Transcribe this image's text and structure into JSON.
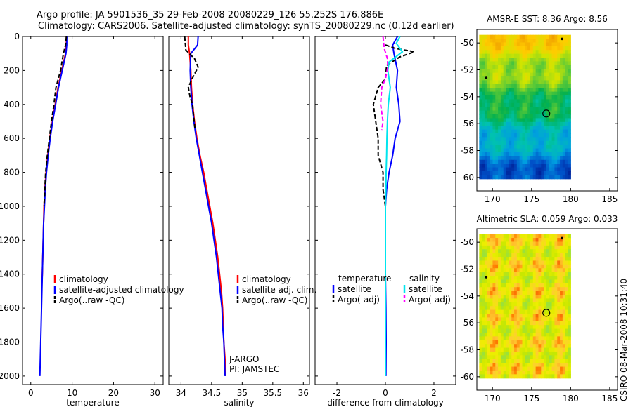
{
  "header": {
    "line1": "Argo profile: JA 5901536_35 29-Feb-2008 20080229_126 55.252S 176.886E",
    "line2": "Climatology: CARS2006. Satellite-adjusted climatology: synTS_20080229.nc (0.12d earlier)"
  },
  "footer_stamp": "CSIRO 08-Mar-2008 10:31:40",
  "colors": {
    "climatology": "#ff0000",
    "satellite": "#0000ff",
    "argo": "#000000",
    "sal_satellite": "#00e5ee",
    "sal_argo": "#ff00ff",
    "axis": "#000000"
  },
  "chart_data": [
    {
      "type": "line",
      "name": "temperature-profile",
      "xlabel": "temperature",
      "ylabel": "",
      "xlim": [
        -2,
        32
      ],
      "ylim": [
        2050,
        0
      ],
      "xticks": [
        0,
        10,
        20,
        30
      ],
      "yticks": [
        0,
        200,
        400,
        600,
        800,
        1000,
        1200,
        1400,
        1600,
        1800,
        2000
      ],
      "series": [
        {
          "name": "climatology",
          "color": "#ff0000",
          "style": "solid",
          "points": [
            [
              8.6,
              0
            ],
            [
              8.6,
              50
            ],
            [
              8.4,
              100
            ],
            [
              7.5,
              200
            ],
            [
              6.6,
              300
            ],
            [
              5.9,
              400
            ],
            [
              5.2,
              500
            ],
            [
              4.6,
              600
            ],
            [
              4.1,
              700
            ],
            [
              3.7,
              800
            ],
            [
              3.4,
              900
            ],
            [
              3.2,
              1000
            ],
            [
              3.0,
              1200
            ],
            [
              2.8,
              1400
            ],
            [
              2.6,
              1500
            ]
          ]
        },
        {
          "name": "satellite-adjusted climatology",
          "color": "#0000ff",
          "style": "solid",
          "points": [
            [
              8.7,
              0
            ],
            [
              8.7,
              50
            ],
            [
              8.5,
              100
            ],
            [
              7.6,
              200
            ],
            [
              6.7,
              300
            ],
            [
              6.0,
              400
            ],
            [
              5.3,
              500
            ],
            [
              4.7,
              600
            ],
            [
              4.2,
              700
            ],
            [
              3.8,
              800
            ],
            [
              3.5,
              900
            ],
            [
              3.3,
              1000
            ],
            [
              3.1,
              1100
            ],
            [
              2.9,
              1300
            ],
            [
              2.7,
              1500
            ],
            [
              2.5,
              1700
            ],
            [
              2.3,
              1900
            ],
            [
              2.2,
              2000
            ]
          ]
        },
        {
          "name": "Argo(..raw -QC)",
          "color": "#000000",
          "style": "dash",
          "points": [
            [
              8.6,
              0
            ],
            [
              8.4,
              50
            ],
            [
              7.9,
              100
            ],
            [
              7.2,
              200
            ],
            [
              6.1,
              300
            ],
            [
              5.6,
              400
            ],
            [
              5.0,
              500
            ],
            [
              4.5,
              600
            ],
            [
              4.0,
              700
            ],
            [
              3.6,
              800
            ],
            [
              3.4,
              900
            ],
            [
              3.2,
              1000
            ]
          ]
        }
      ],
      "legend": {
        "position": "lower-right",
        "entries": [
          "climatology",
          "satellite-adjusted climatology",
          "Argo(..raw -QC)"
        ]
      }
    },
    {
      "type": "line",
      "name": "salinity-profile",
      "xlabel": "salinity",
      "ylabel": "",
      "xlim": [
        33.8,
        36.1
      ],
      "ylim": [
        2050,
        0
      ],
      "xticks": [
        34,
        34.5,
        35,
        35.5,
        36
      ],
      "yticks": [
        0,
        200,
        400,
        600,
        800,
        1000,
        1200,
        1400,
        1600,
        1800,
        2000
      ],
      "series": [
        {
          "name": "climatology",
          "color": "#ff0000",
          "style": "solid",
          "points": [
            [
              34.12,
              0
            ],
            [
              34.12,
              50
            ],
            [
              34.14,
              100
            ],
            [
              34.16,
              200
            ],
            [
              34.17,
              300
            ],
            [
              34.19,
              400
            ],
            [
              34.22,
              500
            ],
            [
              34.26,
              600
            ],
            [
              34.31,
              700
            ],
            [
              34.37,
              800
            ],
            [
              34.42,
              900
            ],
            [
              34.47,
              1000
            ],
            [
              34.52,
              1100
            ],
            [
              34.56,
              1200
            ],
            [
              34.6,
              1300
            ],
            [
              34.63,
              1400
            ],
            [
              34.66,
              1500
            ],
            [
              34.68,
              1600
            ],
            [
              34.69,
              1700
            ],
            [
              34.7,
              1800
            ],
            [
              34.72,
              1900
            ],
            [
              34.73,
              2000
            ]
          ]
        },
        {
          "name": "satellite adj. clim.",
          "color": "#0000ff",
          "style": "solid",
          "points": [
            [
              34.28,
              0
            ],
            [
              34.27,
              50
            ],
            [
              34.16,
              100
            ],
            [
              34.15,
              200
            ],
            [
              34.16,
              300
            ],
            [
              34.18,
              400
            ],
            [
              34.21,
              500
            ],
            [
              34.25,
              600
            ],
            [
              34.3,
              700
            ],
            [
              34.35,
              800
            ],
            [
              34.4,
              900
            ],
            [
              34.45,
              1000
            ],
            [
              34.5,
              1100
            ],
            [
              34.54,
              1200
            ],
            [
              34.58,
              1300
            ],
            [
              34.61,
              1400
            ],
            [
              34.64,
              1500
            ],
            [
              34.67,
              1600
            ],
            [
              34.68,
              1700
            ],
            [
              34.7,
              1800
            ],
            [
              34.71,
              1900
            ],
            [
              34.72,
              2000
            ]
          ]
        },
        {
          "name": "Argo(..raw -QC)",
          "color": "#000000",
          "style": "dash",
          "points": [
            [
              34.06,
              0
            ],
            [
              34.08,
              80
            ],
            [
              34.22,
              130
            ],
            [
              34.28,
              180
            ],
            [
              34.18,
              250
            ],
            [
              34.12,
              300
            ],
            [
              34.15,
              360
            ],
            [
              34.19,
              400
            ],
            [
              34.2,
              450
            ],
            [
              34.23,
              550
            ]
          ]
        }
      ],
      "legend": {
        "position": "lower-right",
        "entries": [
          "climatology",
          "satellite adj. clim.",
          "Argo(..raw -QC)"
        ]
      },
      "annotations": [
        "J-ARGO",
        "PI: JAMSTEC"
      ]
    },
    {
      "type": "line",
      "name": "difference-profile",
      "xlabel": "difference from climatology",
      "ylabel": "",
      "xlim": [
        -2.9,
        2.9
      ],
      "ylim": [
        2050,
        0
      ],
      "xticks": [
        -2,
        0,
        2
      ],
      "yticks": [
        0,
        200,
        400,
        600,
        800,
        1000,
        1200,
        1400,
        1600,
        1800,
        2000
      ],
      "series": [
        {
          "name": "temperature satellite",
          "color": "#0000ff",
          "style": "solid",
          "points": [
            [
              0.5,
              0
            ],
            [
              0.3,
              50
            ],
            [
              0.35,
              100
            ],
            [
              0.5,
              200
            ],
            [
              0.45,
              300
            ],
            [
              0.55,
              400
            ],
            [
              0.6,
              500
            ],
            [
              0.4,
              600
            ],
            [
              0.3,
              700
            ],
            [
              0.15,
              800
            ],
            [
              0.05,
              900
            ],
            [
              0.0,
              1000
            ],
            [
              0.0,
              1200
            ],
            [
              0.0,
              1400
            ],
            [
              0.02,
              1600
            ],
            [
              0.03,
              1800
            ],
            [
              0.02,
              2000
            ]
          ]
        },
        {
          "name": "temperature Argo(-adj)",
          "color": "#000000",
          "style": "dash",
          "points": [
            [
              0.0,
              50
            ],
            [
              0.4,
              70
            ],
            [
              1.2,
              90
            ],
            [
              0.6,
              120
            ],
            [
              0.05,
              170
            ],
            [
              0.0,
              250
            ],
            [
              -0.3,
              300
            ],
            [
              -0.5,
              400
            ],
            [
              -0.4,
              500
            ],
            [
              -0.3,
              600
            ],
            [
              -0.3,
              700
            ],
            [
              -0.1,
              800
            ],
            [
              -0.1,
              900
            ],
            [
              0.0,
              1000
            ]
          ]
        },
        {
          "name": "salinity satellite",
          "color": "#00e5ee",
          "style": "solid",
          "points": [
            [
              0.6,
              0
            ],
            [
              0.45,
              40
            ],
            [
              0.7,
              90
            ],
            [
              0.15,
              150
            ],
            [
              0.1,
              200
            ],
            [
              0.2,
              300
            ],
            [
              0.12,
              400
            ],
            [
              0.08,
              500
            ],
            [
              0.06,
              600
            ],
            [
              0.05,
              700
            ],
            [
              0.03,
              800
            ],
            [
              0.02,
              900
            ],
            [
              0.0,
              1000
            ],
            [
              0.0,
              1200
            ],
            [
              0.0,
              1400
            ],
            [
              0.0,
              1600
            ],
            [
              0.0,
              1800
            ],
            [
              0.0,
              2000
            ]
          ]
        },
        {
          "name": "salinity Argo(-adj)",
          "color": "#ff00ff",
          "style": "dash",
          "points": [
            [
              -0.1,
              0
            ],
            [
              -0.05,
              70
            ],
            [
              0.08,
              130
            ],
            [
              0.1,
              180
            ],
            [
              0.0,
              250
            ],
            [
              -0.15,
              300
            ],
            [
              -0.2,
              400
            ],
            [
              -0.1,
              500
            ],
            [
              -0.15,
              550
            ]
          ]
        }
      ],
      "legend": {
        "position": "lower-center",
        "headers": [
          "temperature",
          "salinity"
        ],
        "entries": [
          "satellite",
          "Argo(-adj)",
          "satellite",
          "Argo(-adj)"
        ]
      }
    },
    {
      "type": "heatmap",
      "name": "amsre-sst-map",
      "title": "AMSR-E SST: 8.36 Argo: 8.56",
      "xlim": [
        168,
        186
      ],
      "ylim": [
        -61,
        -49
      ],
      "xticks": [
        170,
        175,
        180,
        185
      ],
      "yticks": [
        -50,
        -52,
        -54,
        -56,
        -58,
        -60
      ],
      "data_extent": {
        "lon": [
          168.3,
          180
        ],
        "lat": [
          -60.1,
          -49.4
        ]
      },
      "marker": {
        "lon": 176.886,
        "lat": -55.252,
        "symbol": "circle"
      },
      "dots": [
        {
          "lon": 178.9,
          "lat": -49.7
        },
        {
          "lon": 169.2,
          "lat": -52.6
        }
      ],
      "field_colors": [
        "#ee9900",
        "#ffcc00",
        "#cfe500",
        "#66cc33",
        "#00b050",
        "#00c2b0",
        "#009ee0",
        "#0050c8",
        "#001a90"
      ]
    },
    {
      "type": "heatmap",
      "name": "altimetric-sla-map",
      "title": "Altimetric SLA: 0.059 Argo: 0.033",
      "xlim": [
        168,
        186
      ],
      "ylim": [
        -61,
        -49
      ],
      "xticks": [
        170,
        175,
        180,
        185
      ],
      "yticks": [
        -50,
        -52,
        -54,
        -56,
        -58,
        -60
      ],
      "data_extent": {
        "lon": [
          168.3,
          180
        ],
        "lat": [
          -60.1,
          -49.4
        ]
      },
      "marker": {
        "lon": 176.886,
        "lat": -55.252,
        "symbol": "circle"
      },
      "dots": [
        {
          "lon": 178.9,
          "lat": -49.7
        },
        {
          "lon": 169.2,
          "lat": -52.6
        }
      ],
      "field_colors": [
        "#9be13a",
        "#c8e800",
        "#eeee00",
        "#ffcc33",
        "#ff7f00",
        "#e03020",
        "#00c896",
        "#22a0e6"
      ]
    }
  ]
}
